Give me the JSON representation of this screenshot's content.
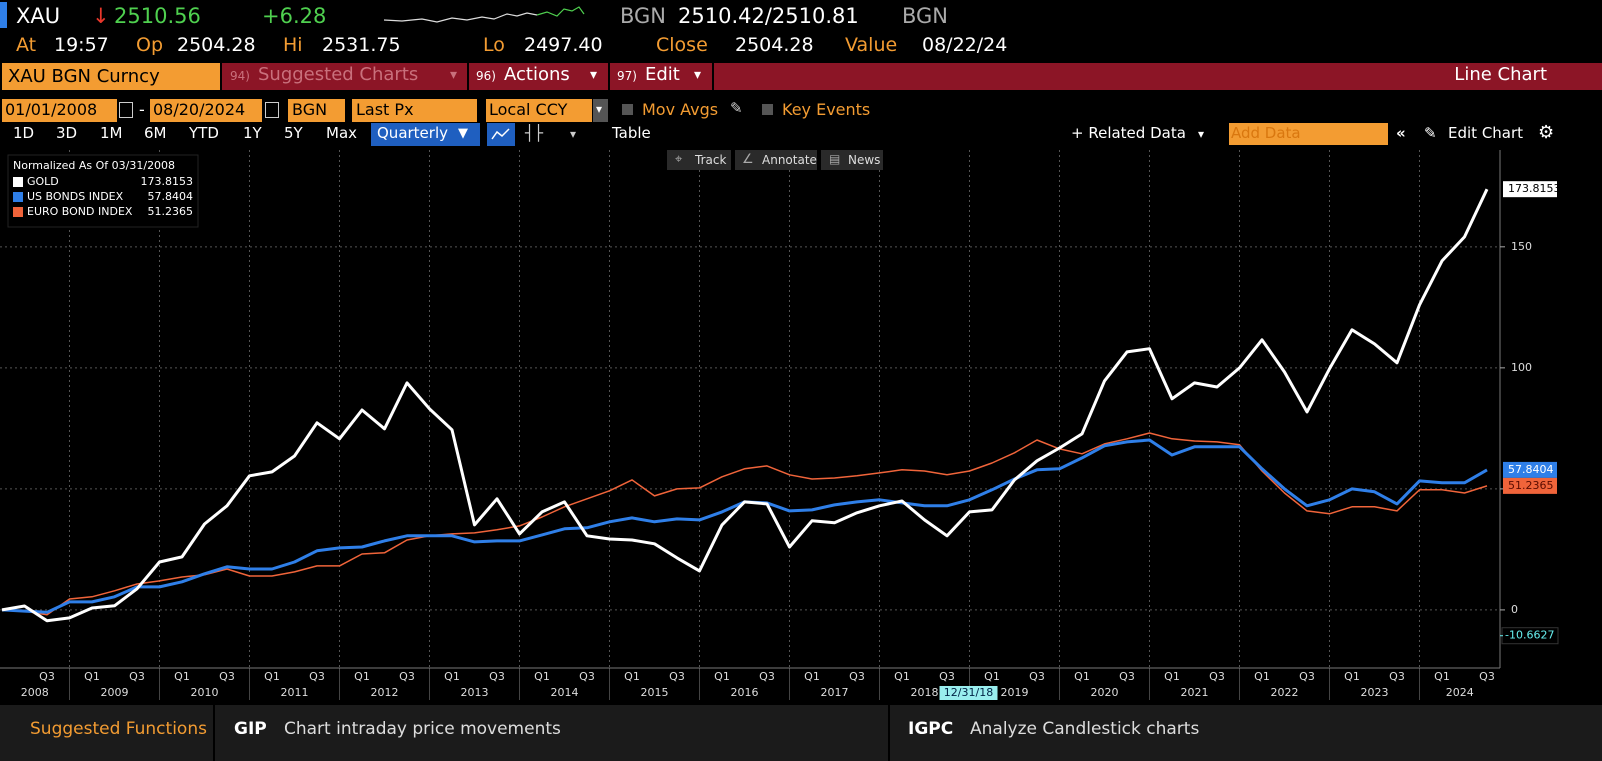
{
  "header": {
    "ticker": "XAU",
    "direction": "↓",
    "last": "2510.56",
    "change": "+6.28",
    "bid_ask_currency": "BGN",
    "bid_ask": "2510.42/2510.81",
    "quote_currency": "BGN",
    "quote": [
      {
        "label": "At",
        "value": "19:57"
      },
      {
        "label": "Op",
        "value": "2504.28"
      },
      {
        "label": "Hi",
        "value": "2531.75"
      },
      {
        "label": "Lo",
        "value": "2497.40"
      },
      {
        "label": "Close",
        "value": "2504.28"
      },
      {
        "label": "Value",
        "value": "08/22/24"
      }
    ]
  },
  "menu": {
    "security": "XAU BGN Curncy",
    "items": [
      {
        "key": "94)",
        "label": "Suggested Charts"
      },
      {
        "key": "96)",
        "label": "Actions"
      },
      {
        "key": "97)",
        "label": "Edit"
      }
    ],
    "view": "Line Chart"
  },
  "settings": {
    "start": "01/01/2008",
    "separator": "-",
    "end": "08/20/2024",
    "source": "BGN",
    "field": "Last Px",
    "currency": "Local CCY",
    "options": [
      "Mov Avgs",
      "Key Events"
    ]
  },
  "periods": {
    "ranges": [
      "1D",
      "3D",
      "1M",
      "6M",
      "YTD",
      "1Y",
      "5Y",
      "Max"
    ],
    "frequency": "Quarterly",
    "table": "Table",
    "related": "+ Related Data",
    "add": "Add Data",
    "edit": "Edit Chart"
  },
  "chart_tools": [
    "Track",
    "Annotate",
    "News"
  ],
  "chart_data": {
    "type": "line",
    "legend_title": "Normalized As Of 03/31/2008",
    "categories": [
      null,
      null,
      "Q3",
      null,
      "Q1",
      null,
      "Q3",
      null,
      "Q1",
      null,
      "Q3",
      null,
      "Q1",
      null,
      "Q3",
      null,
      "Q1",
      null,
      "Q3",
      null,
      "Q1",
      null,
      "Q3",
      null,
      "Q1",
      null,
      "Q3",
      null,
      "Q1",
      null,
      "Q3",
      null,
      "Q1",
      null,
      "Q3",
      null,
      "Q1",
      null,
      "Q3",
      null,
      "Q1",
      null,
      "Q3",
      null,
      "Q1",
      null,
      "Q3",
      null,
      "Q1",
      null,
      "Q3",
      null,
      "Q1",
      null,
      "Q3",
      null,
      "Q1",
      null,
      "Q3",
      null,
      "Q1",
      null,
      "Q3",
      null,
      "Q1",
      null,
      "Q3"
    ],
    "year_labels": [
      "2008",
      "2009",
      "2010",
      "2011",
      "2012",
      "2013",
      "2014",
      "2015",
      "2016",
      "2017",
      "2018",
      "2019",
      "2020",
      "2021",
      "2022",
      "2023",
      "2024"
    ],
    "series": [
      {
        "name": "GOLD",
        "color": "#ffffff",
        "values": [
          0,
          1.6,
          -4.5,
          -3.3,
          0.8,
          1.7,
          8.7,
          19.8,
          21.9,
          35.5,
          43,
          55.4,
          57,
          63.6,
          77.3,
          70.7,
          82.6,
          74.8,
          93.8,
          83.1,
          74.4,
          35.1,
          45.9,
          31.4,
          40.5,
          44.6,
          30.6,
          29.3,
          28.9,
          27.3,
          21.5,
          16.1,
          35.1,
          44.6,
          43.8,
          26,
          36.8,
          36,
          40.1,
          43,
          45,
          37.2,
          30.6,
          40.5,
          41.3,
          53.7,
          61.6,
          66.9,
          72.7,
          94.6,
          106.6,
          107.9,
          87.2,
          93.8,
          92.1,
          100,
          111.6,
          98.3,
          81.8,
          99.6,
          115.7,
          109.9,
          102.1,
          126,
          144.2,
          154.1,
          173.8153
        ]
      },
      {
        "name": "US BONDS INDEX",
        "color": "#2f7fe8",
        "values": [
          0,
          -0.5,
          -1,
          3.3,
          3.3,
          5.4,
          9.5,
          9.5,
          11.6,
          14.9,
          17.8,
          16.9,
          16.9,
          19.8,
          24.4,
          25.6,
          26,
          28.5,
          30.6,
          30.6,
          30.6,
          28.1,
          28.5,
          28.5,
          31,
          33.5,
          33.9,
          36.4,
          38,
          36.4,
          37.6,
          37.2,
          40.5,
          44.6,
          44.2,
          40.9,
          41.3,
          43.4,
          44.6,
          45.5,
          44.2,
          43,
          43,
          45.5,
          49.6,
          54.1,
          57.9,
          58.3,
          62.8,
          67.8,
          69.4,
          70.2,
          64,
          67.4,
          67.4,
          67.4,
          58.3,
          50,
          43,
          45.5,
          50,
          48.8,
          43.8,
          53.3,
          52.5,
          52.5,
          57.8404
        ]
      },
      {
        "name": "EURO BOND INDEX",
        "color": "#f0643a",
        "values": [
          0,
          -0.5,
          -2,
          4.5,
          5.4,
          7.9,
          10.7,
          12,
          13.6,
          14.5,
          16.9,
          14,
          14,
          15.7,
          18.2,
          18.2,
          23.1,
          23.6,
          28.9,
          30.6,
          31.4,
          31.8,
          33.1,
          34.7,
          38.4,
          42.6,
          45.9,
          49.2,
          53.7,
          47.1,
          50,
          50.4,
          55,
          58.3,
          59.5,
          55.8,
          54.1,
          54.5,
          55.4,
          56.6,
          57.9,
          57.4,
          55.8,
          57.4,
          60.7,
          64.9,
          70.2,
          66.5,
          64.5,
          68.6,
          70.7,
          73.1,
          70.7,
          69.8,
          69.4,
          68.2,
          57.4,
          48.3,
          40.9,
          39.7,
          42.6,
          42.6,
          40.9,
          49.6,
          49.6,
          48.3,
          51.2365
        ]
      }
    ],
    "ylim": [
      -24,
      190
    ],
    "yticks": [
      0,
      50,
      100,
      150
    ],
    "grid": true,
    "crosshair_label": "12/31/18",
    "min_marker": -10.6627
  },
  "footer": {
    "title": "Suggested Functions",
    "items": [
      {
        "code": "GIP",
        "text": "Chart intraday price movements"
      },
      {
        "code": "IGPC",
        "text": "Analyze Candlestick charts"
      }
    ]
  }
}
